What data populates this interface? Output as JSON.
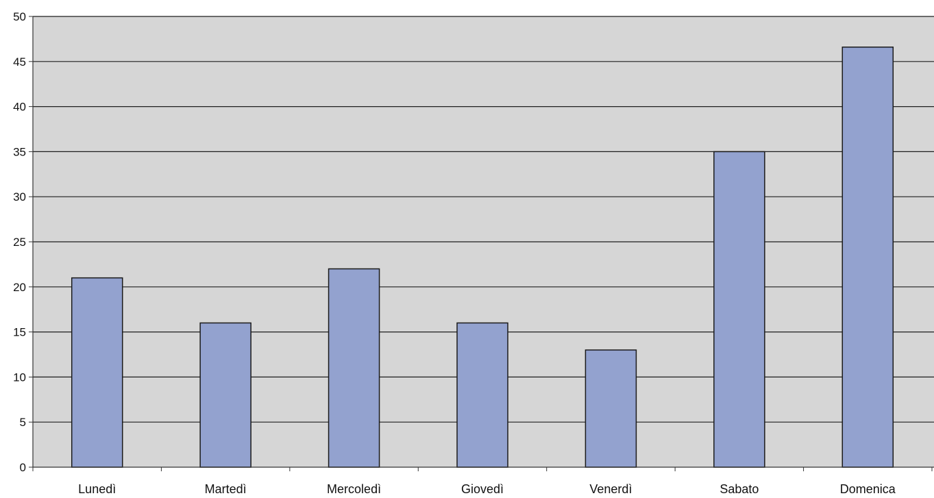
{
  "chart_data": {
    "type": "bar",
    "categories": [
      "Lunedì",
      "Martedì",
      "Mercoledì",
      "Giovedì",
      "Venerdì",
      "Sabato",
      "Domenica"
    ],
    "values": [
      21,
      16,
      22,
      16,
      13,
      35,
      46.6
    ],
    "ylim": [
      0,
      50
    ],
    "yticks": [
      0,
      5,
      10,
      15,
      20,
      25,
      30,
      35,
      40,
      45,
      50
    ],
    "ytick_labels": [
      "0",
      "5",
      "10",
      "15",
      "20",
      "25",
      "30",
      "35",
      "40",
      "45",
      "50"
    ],
    "title": "",
    "xlabel": "",
    "ylabel": "",
    "grid": true,
    "legend": "none",
    "colors": {
      "plot_background": "#d6d6d6",
      "bar_fill": "#93a2cf",
      "bar_stroke": "#1a1a1a",
      "gridline": "#1e1e1e",
      "axis": "#333333"
    }
  }
}
